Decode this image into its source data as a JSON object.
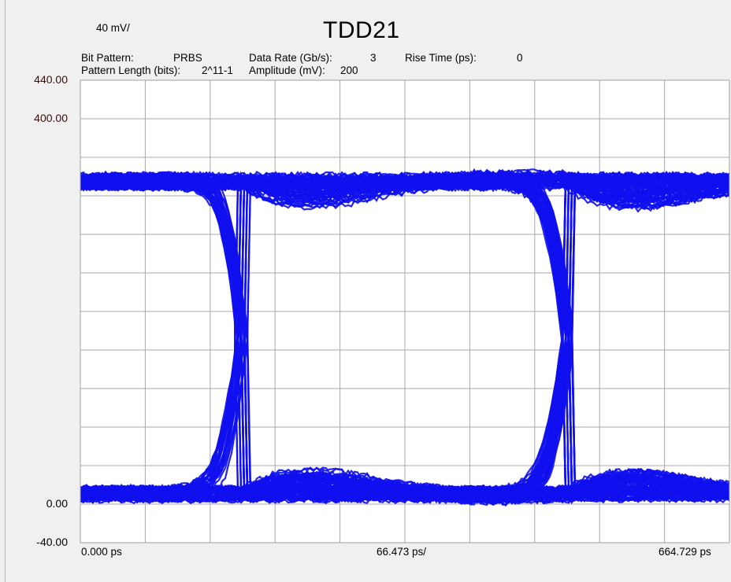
{
  "header": {
    "scale": "40 mV/",
    "title": "TDD21",
    "bit_pattern_label": "Bit Pattern:",
    "bit_pattern_value": "PRBS",
    "pattern_length_label": "Pattern Length (bits):",
    "pattern_length_value": "2^11-1",
    "data_rate_label": "Data Rate (Gb/s):",
    "data_rate_value": "3",
    "amplitude_label": "Amplitude (mV):",
    "amplitude_value": "200",
    "rise_time_label": "Rise Time (ps):",
    "rise_time_value": "0"
  },
  "colors": {
    "trace": "#1010ee",
    "grid": "#a8a8a8",
    "plot_bg": "#ffffff",
    "page_bg": "#f0f0f0"
  },
  "chart_data": {
    "type": "line",
    "subtype": "eye-diagram",
    "title": "TDD21",
    "x_unit": "ps",
    "x_range": [
      0.0,
      664.729
    ],
    "x_division": 66.473,
    "x_labels": {
      "left": "0.000 ps",
      "center": "66.473 ps/",
      "right": "664.729 ps"
    },
    "y_unit": "mV",
    "y_range": [
      -40.0,
      440.0
    ],
    "y_division": 40,
    "y_labels": [
      {
        "value": 440,
        "text": "440.00"
      },
      {
        "value": 400,
        "text": "400.00"
      },
      {
        "value": 0,
        "text": "0.00"
      },
      {
        "value": -40,
        "text": "-40.00"
      }
    ],
    "grid": true,
    "levels": {
      "high_mV": 335,
      "low_mV": 10
    },
    "crossing_points_ps": [
      166.5,
      500.0
    ],
    "unit_interval_ps": 333.33
  }
}
